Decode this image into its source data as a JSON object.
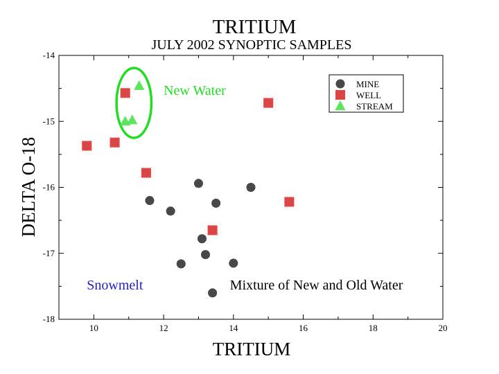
{
  "chart_data": {
    "type": "scatter",
    "title": "TRITIUM",
    "subtitle": "JULY 2002 SYNOPTIC SAMPLES",
    "xlabel": "TRITIUM",
    "ylabel": "DELTA O-18",
    "xlim": [
      9,
      20
    ],
    "ylim": [
      -18,
      -14
    ],
    "x_ticks": [
      10,
      12,
      14,
      16,
      18,
      20
    ],
    "y_ticks": [
      -18,
      -17,
      -16,
      -15,
      -14
    ],
    "grid": false,
    "legend_position": "top-right",
    "series": [
      {
        "name": "MINE",
        "marker": "circle",
        "color": "#000000",
        "points": [
          {
            "x": 11.6,
            "y": -16.2
          },
          {
            "x": 12.2,
            "y": -16.36
          },
          {
            "x": 12.5,
            "y": -17.16
          },
          {
            "x": 13.0,
            "y": -15.94
          },
          {
            "x": 13.1,
            "y": -16.78
          },
          {
            "x": 13.2,
            "y": -17.02
          },
          {
            "x": 13.4,
            "y": -17.6
          },
          {
            "x": 13.5,
            "y": -16.24
          },
          {
            "x": 14.0,
            "y": -17.15
          },
          {
            "x": 14.5,
            "y": -16.0
          }
        ]
      },
      {
        "name": "WELL",
        "marker": "square",
        "color": "#dd0000",
        "points": [
          {
            "x": 9.8,
            "y": -15.37
          },
          {
            "x": 10.6,
            "y": -15.32
          },
          {
            "x": 10.9,
            "y": -14.57
          },
          {
            "x": 11.5,
            "y": -15.78
          },
          {
            "x": 13.4,
            "y": -16.65
          },
          {
            "x": 15.0,
            "y": -14.72
          },
          {
            "x": 15.6,
            "y": -16.22
          }
        ]
      },
      {
        "name": "STREAM",
        "marker": "triangle",
        "color": "#22dd22",
        "points": [
          {
            "x": 10.9,
            "y": -15.0
          },
          {
            "x": 11.1,
            "y": -14.98
          },
          {
            "x": 11.3,
            "y": -14.46
          }
        ]
      }
    ],
    "annotations": [
      {
        "text": "New Water",
        "color": "#22dd22",
        "x": 12.0,
        "y": -14.6
      },
      {
        "text": "Snowmelt",
        "color": "#1f1fc8",
        "x": 9.8,
        "y": -17.55
      },
      {
        "text": "Mixture of New and Old Water",
        "color": "#000000",
        "x": 13.9,
        "y": -17.55
      }
    ],
    "highlight_ellipse": {
      "cx": 11.15,
      "cy": -14.72,
      "rx": 0.5,
      "ry": 0.53,
      "color": "#22dd22"
    }
  }
}
